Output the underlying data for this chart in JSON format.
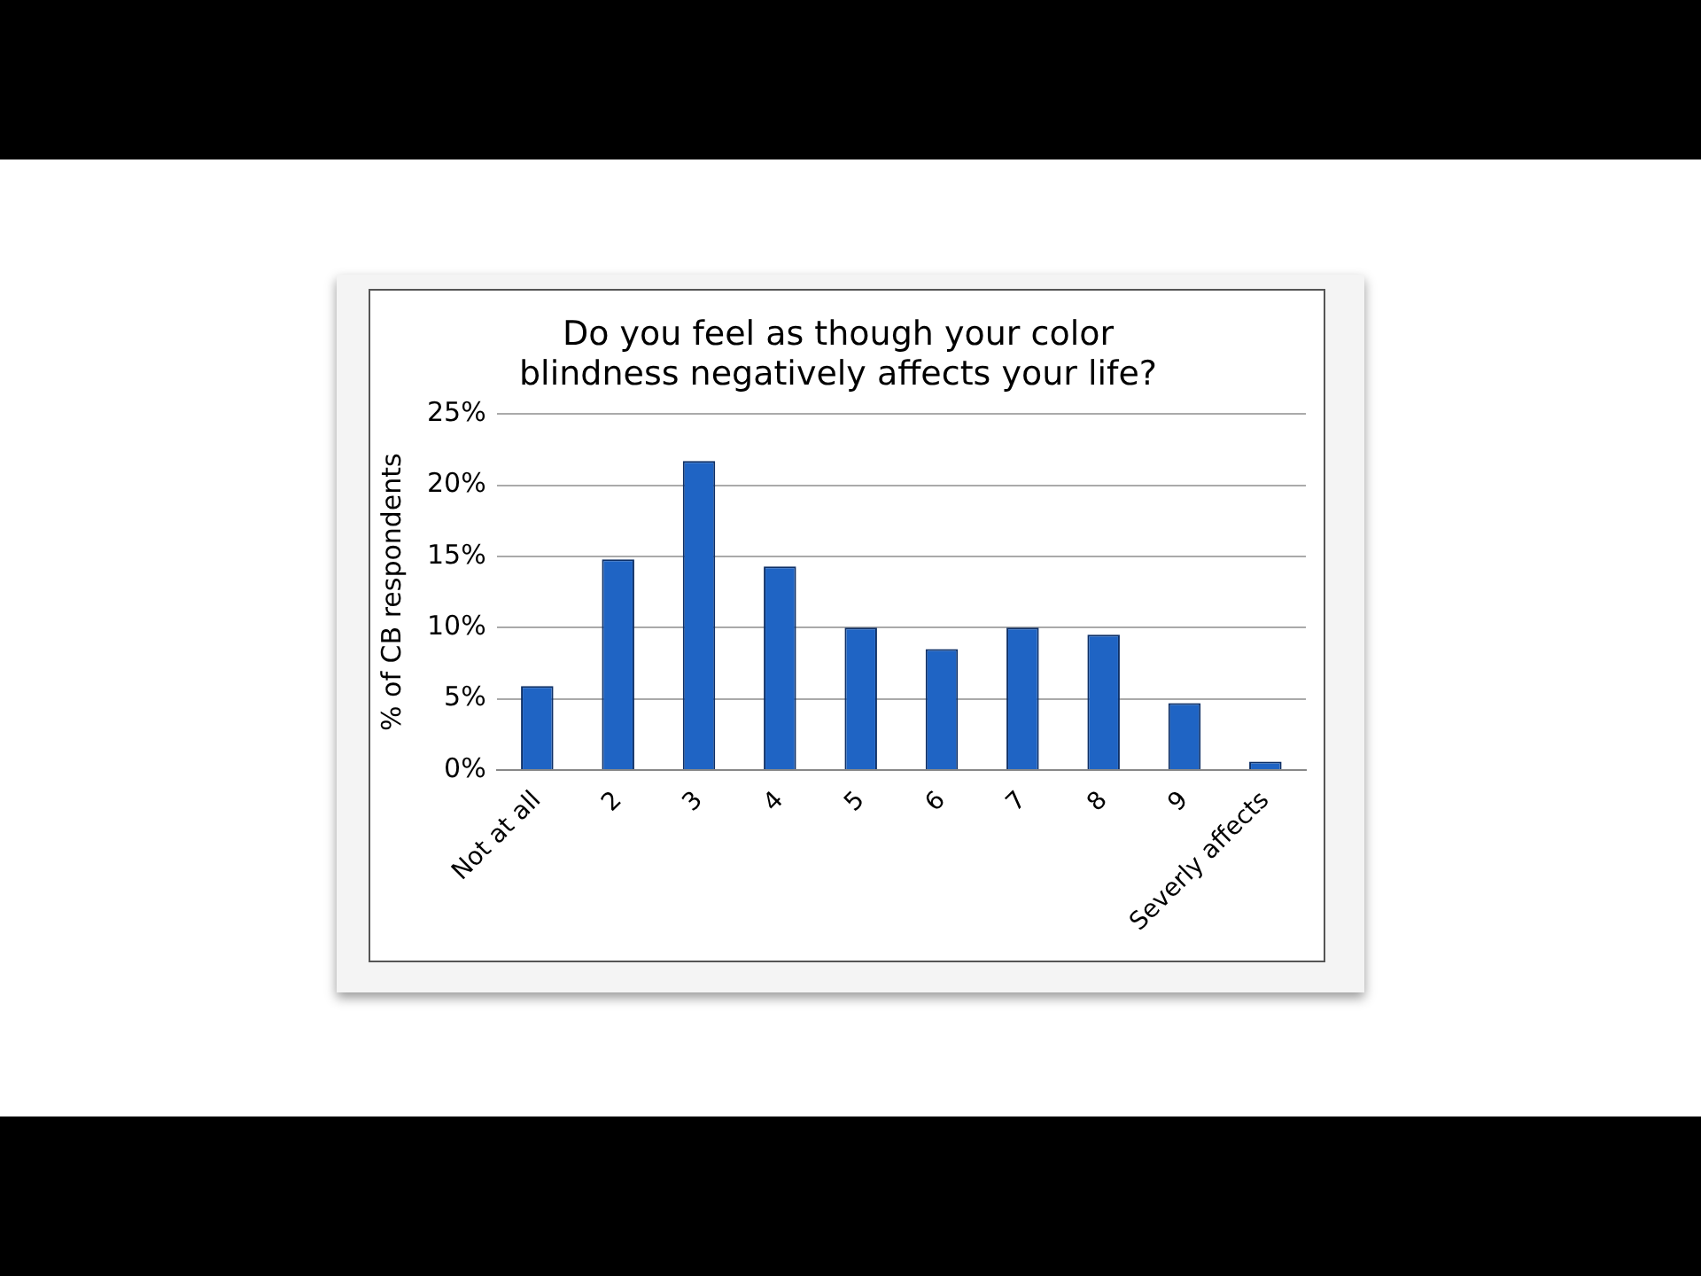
{
  "chart_data": {
    "type": "bar",
    "title": [
      "Do you feel as though your color",
      "blindness negatively affects your life?"
    ],
    "ylabel": "% of CB respondents",
    "categories": [
      "Not at all",
      "2",
      "3",
      "4",
      "5",
      "6",
      "7",
      "8",
      "9",
      "Severly affects"
    ],
    "values": [
      5.9,
      14.8,
      21.7,
      14.3,
      10.0,
      8.5,
      10.0,
      9.5,
      4.7,
      0.6
    ],
    "color": "#1f64c4",
    "ylim": [
      0,
      25
    ],
    "yticks": [
      {
        "value": 0,
        "label": "0%"
      },
      {
        "value": 5,
        "label": "5%"
      },
      {
        "value": 10,
        "label": "10%"
      },
      {
        "value": 15,
        "label": "15%"
      },
      {
        "value": 20,
        "label": "20%"
      },
      {
        "value": 25,
        "label": "25%"
      }
    ],
    "grid": "y"
  }
}
